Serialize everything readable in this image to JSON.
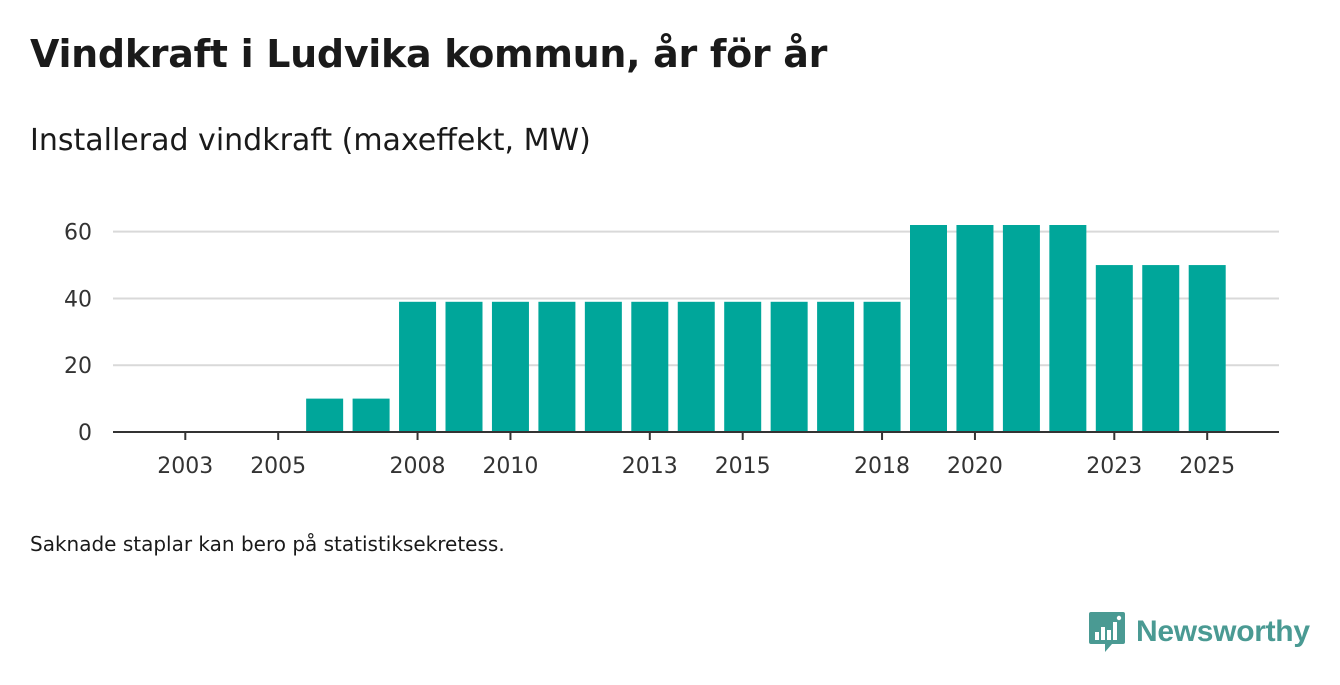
{
  "title": "Vindkraft i Ludvika kommun, år för år",
  "subtitle": "Installerad vindkraft (maxeffekt, MW)",
  "note": "Saknade staplar kan bero på statistiksekretess.",
  "brand": {
    "name": "Newsworthy",
    "icon": "newsworthy-logo-icon",
    "color": "#4a9a93"
  },
  "chart_data": {
    "type": "bar",
    "title": "Installerad vindkraft (maxeffekt, MW)",
    "xlabel": "",
    "ylabel": "MW",
    "ylim": [
      0,
      62
    ],
    "grid": true,
    "bar_color": "#00a69a",
    "categories": [
      "2003",
      "2004",
      "2005",
      "2006",
      "2007",
      "2008",
      "2009",
      "2010",
      "2011",
      "2012",
      "2013",
      "2014",
      "2015",
      "2016",
      "2017",
      "2018",
      "2019",
      "2020",
      "2021",
      "2022",
      "2023",
      "2024",
      "2025"
    ],
    "values": [
      0,
      0,
      0,
      10,
      10,
      39,
      39,
      39,
      39,
      39,
      39,
      39,
      39,
      39,
      39,
      39,
      62,
      62,
      62,
      62,
      50,
      50,
      50
    ],
    "y_ticks": [
      "0",
      "20",
      "40",
      "60"
    ],
    "x_tick_labels": [
      "2003",
      "2005",
      "2008",
      "2010",
      "2013",
      "2015",
      "2018",
      "2020",
      "2023",
      "2025"
    ]
  }
}
